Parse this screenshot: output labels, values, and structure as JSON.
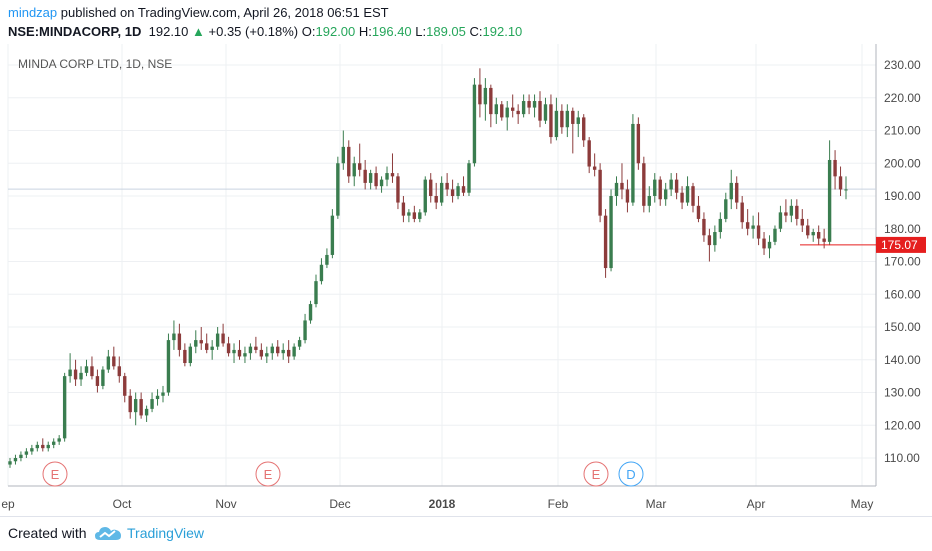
{
  "header": {
    "user": "mindzap",
    "published": " published on TradingView.com, April 26, 2018 06:51 EST",
    "symbol": "NSE:MINDACORP, 1D",
    "last": "192.10",
    "change_arrow": "▲",
    "change": "+0.35 (+0.18%)",
    "o_label": "O:",
    "o_val": "192.00",
    "h_label": "H:",
    "h_val": "196.40",
    "l_label": "L:",
    "l_val": "189.05",
    "c_label": "C:",
    "c_val": "192.10"
  },
  "footer": {
    "created": "Created with",
    "brand": "TradingView"
  },
  "colors": {
    "up": "#3a7d4f",
    "down": "#8c3b3b",
    "price_tag": "#e51e1e",
    "event_e": "#e57373",
    "event_d": "#42a5f5"
  },
  "chart_data": {
    "type": "candlestick",
    "title": "MINDA CORP LTD, 1D, NSE",
    "ylim": [
      100,
      233
    ],
    "yticks": [
      110,
      120,
      130,
      140,
      150,
      160,
      170,
      180,
      190,
      200,
      210,
      220,
      230
    ],
    "ytick_labels": [
      "110.00",
      "120.00",
      "130.00",
      "140.00",
      "150.00",
      "160.00",
      "170.00",
      "180.00",
      "190.00",
      "200.00",
      "210.00",
      "220.00",
      "230.00"
    ],
    "xlabels": [
      "ep",
      "Oct",
      "Nov",
      "Dec",
      "2018",
      "Feb",
      "Mar",
      "Apr",
      "May"
    ],
    "current_price_line": 192.1,
    "price_tag": "175.07",
    "events": [
      "E",
      "E",
      "E",
      "D"
    ],
    "candles": [
      [
        108,
        110,
        107,
        109
      ],
      [
        109,
        111,
        108,
        110
      ],
      [
        110,
        112,
        109,
        111
      ],
      [
        111,
        113,
        110,
        112
      ],
      [
        112,
        114,
        111,
        113
      ],
      [
        113,
        115,
        112,
        114
      ],
      [
        114,
        116,
        112,
        113
      ],
      [
        113,
        115,
        112,
        114
      ],
      [
        114,
        116,
        113,
        115
      ],
      [
        115,
        117,
        114,
        116
      ],
      [
        116,
        136,
        115,
        135
      ],
      [
        135,
        142,
        133,
        137
      ],
      [
        137,
        140,
        132,
        134
      ],
      [
        134,
        138,
        132,
        136
      ],
      [
        136,
        140,
        135,
        138
      ],
      [
        138,
        141,
        134,
        135
      ],
      [
        135,
        137,
        130,
        132
      ],
      [
        132,
        138,
        131,
        137
      ],
      [
        137,
        143,
        136,
        141
      ],
      [
        141,
        144,
        137,
        138
      ],
      [
        138,
        141,
        133,
        135
      ],
      [
        135,
        136,
        127,
        129
      ],
      [
        129,
        131,
        122,
        124
      ],
      [
        124,
        130,
        120,
        128
      ],
      [
        128,
        130,
        122,
        123
      ],
      [
        123,
        126,
        121,
        125
      ],
      [
        125,
        130,
        124,
        128
      ],
      [
        128,
        131,
        126,
        129
      ],
      [
        129,
        132,
        127,
        130
      ],
      [
        130,
        148,
        129,
        146
      ],
      [
        146,
        152,
        143,
        148
      ],
      [
        148,
        151,
        141,
        143
      ],
      [
        143,
        145,
        138,
        139
      ],
      [
        139,
        145,
        138,
        144
      ],
      [
        144,
        149,
        142,
        146
      ],
      [
        146,
        150,
        143,
        145
      ],
      [
        145,
        148,
        142,
        143
      ],
      [
        143,
        146,
        140,
        144
      ],
      [
        144,
        150,
        143,
        148
      ],
      [
        148,
        151,
        144,
        145
      ],
      [
        145,
        147,
        141,
        142
      ],
      [
        142,
        145,
        139,
        143
      ],
      [
        143,
        146,
        140,
        141
      ],
      [
        141,
        144,
        139,
        142
      ],
      [
        142,
        145,
        140,
        144
      ],
      [
        144,
        147,
        142,
        143
      ],
      [
        143,
        145,
        140,
        141
      ],
      [
        141,
        144,
        139,
        142
      ],
      [
        142,
        145,
        140,
        144
      ],
      [
        144,
        146,
        141,
        142
      ],
      [
        142,
        145,
        140,
        143
      ],
      [
        143,
        146,
        139,
        141
      ],
      [
        141,
        145,
        140,
        144
      ],
      [
        144,
        147,
        143,
        146
      ],
      [
        146,
        154,
        145,
        152
      ],
      [
        152,
        158,
        151,
        157
      ],
      [
        157,
        166,
        156,
        164
      ],
      [
        164,
        171,
        163,
        169
      ],
      [
        169,
        174,
        168,
        172
      ],
      [
        172,
        186,
        171,
        184
      ],
      [
        184,
        202,
        183,
        200
      ],
      [
        200,
        210,
        198,
        205
      ],
      [
        205,
        207,
        194,
        196
      ],
      [
        196,
        202,
        193,
        200
      ],
      [
        200,
        206,
        196,
        198
      ],
      [
        198,
        201,
        192,
        194
      ],
      [
        194,
        198,
        192,
        197
      ],
      [
        197,
        199,
        192,
        193
      ],
      [
        193,
        196,
        191,
        195
      ],
      [
        195,
        199,
        193,
        197
      ],
      [
        197,
        203,
        194,
        196
      ],
      [
        196,
        197,
        186,
        188
      ],
      [
        188,
        190,
        182,
        184
      ],
      [
        184,
        186,
        182,
        185
      ],
      [
        185,
        187,
        182,
        183
      ],
      [
        183,
        186,
        182,
        185
      ],
      [
        185,
        196,
        184,
        195
      ],
      [
        195,
        197,
        188,
        190
      ],
      [
        190,
        194,
        186,
        188
      ],
      [
        188,
        196,
        187,
        194
      ],
      [
        194,
        197,
        190,
        192
      ],
      [
        192,
        195,
        188,
        190
      ],
      [
        190,
        194,
        189,
        193
      ],
      [
        193,
        196,
        190,
        191
      ],
      [
        191,
        201,
        190,
        200
      ],
      [
        200,
        226,
        199,
        224
      ],
      [
        224,
        229,
        214,
        218
      ],
      [
        218,
        226,
        213,
        223
      ],
      [
        223,
        224,
        211,
        215
      ],
      [
        215,
        220,
        212,
        218
      ],
      [
        218,
        219,
        213,
        214
      ],
      [
        214,
        219,
        210,
        217
      ],
      [
        217,
        221,
        214,
        216
      ],
      [
        216,
        218,
        212,
        215
      ],
      [
        215,
        221,
        214,
        219
      ],
      [
        219,
        221,
        215,
        217
      ],
      [
        217,
        221,
        214,
        219
      ],
      [
        219,
        222,
        211,
        213
      ],
      [
        213,
        220,
        212,
        218
      ],
      [
        218,
        221,
        206,
        208
      ],
      [
        208,
        220,
        207,
        216
      ],
      [
        216,
        218,
        209,
        211
      ],
      [
        211,
        218,
        208,
        216
      ],
      [
        216,
        217,
        203,
        212
      ],
      [
        212,
        216,
        208,
        214
      ],
      [
        214,
        215,
        205,
        207
      ],
      [
        207,
        208,
        197,
        199
      ],
      [
        199,
        203,
        196,
        198
      ],
      [
        198,
        200,
        182,
        184
      ],
      [
        184,
        186,
        165,
        168
      ],
      [
        168,
        192,
        167,
        190
      ],
      [
        190,
        196,
        187,
        194
      ],
      [
        194,
        200,
        189,
        192
      ],
      [
        192,
        195,
        185,
        188
      ],
      [
        188,
        215,
        187,
        212
      ],
      [
        212,
        214,
        198,
        200
      ],
      [
        200,
        202,
        185,
        187
      ],
      [
        187,
        193,
        185,
        190
      ],
      [
        190,
        197,
        188,
        195
      ],
      [
        195,
        196,
        187,
        189
      ],
      [
        189,
        194,
        187,
        192
      ],
      [
        192,
        197,
        190,
        195
      ],
      [
        195,
        197,
        189,
        191
      ],
      [
        191,
        193,
        186,
        188
      ],
      [
        188,
        196,
        187,
        193
      ],
      [
        193,
        194,
        185,
        187
      ],
      [
        187,
        190,
        182,
        183
      ],
      [
        183,
        185,
        176,
        178
      ],
      [
        178,
        180,
        170,
        175
      ],
      [
        175,
        181,
        173,
        179
      ],
      [
        179,
        185,
        177,
        183
      ],
      [
        183,
        191,
        182,
        189
      ],
      [
        189,
        198,
        186,
        194
      ],
      [
        194,
        196,
        186,
        188
      ],
      [
        188,
        190,
        180,
        182
      ],
      [
        182,
        186,
        178,
        180
      ],
      [
        180,
        184,
        177,
        181
      ],
      [
        181,
        185,
        175,
        177
      ],
      [
        177,
        179,
        172,
        174
      ],
      [
        174,
        178,
        171,
        176
      ],
      [
        176,
        181,
        175,
        180
      ],
      [
        180,
        187,
        179,
        185
      ],
      [
        185,
        189,
        182,
        184
      ],
      [
        184,
        189,
        182,
        187
      ],
      [
        187,
        189,
        181,
        183
      ],
      [
        183,
        186,
        179,
        181
      ],
      [
        181,
        183,
        177,
        178
      ],
      [
        178,
        180,
        176,
        179
      ],
      [
        179,
        181,
        175,
        177
      ],
      [
        177,
        180,
        174,
        176
      ],
      [
        176,
        207,
        175,
        201
      ],
      [
        201,
        204,
        192,
        196
      ],
      [
        196,
        199,
        190,
        192
      ],
      [
        192,
        196,
        189,
        192
      ]
    ]
  }
}
